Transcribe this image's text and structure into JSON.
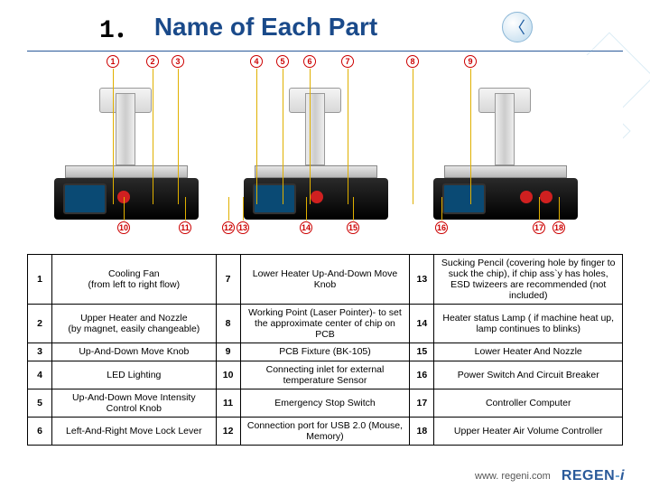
{
  "title": {
    "num": "1．",
    "text": "Name of Each Part"
  },
  "markers_top": [
    1,
    2,
    3,
    4,
    5,
    6,
    7,
    8,
    9
  ],
  "markers_bot": [
    10,
    11,
    12,
    13,
    14,
    15,
    16,
    17,
    18
  ],
  "rows": [
    {
      "a": "1",
      "at": "Cooling Fan\n(from left to right flow)",
      "b": "7",
      "bt": "Lower Heater Up-And-Down Move Knob",
      "c": "13",
      "ct": "Sucking Pencil (covering hole by finger to suck the chip), if chip ass`y has holes, ESD twizeers are recommended (not included)"
    },
    {
      "a": "2",
      "at": "Upper Heater and Nozzle\n(by magnet, easily changeable)",
      "b": "8",
      "bt": "Working Point (Laser Pointer)- to set the approximate center of chip on PCB",
      "c": "14",
      "ct": "Heater status Lamp ( if machine heat up, lamp continues to blinks)"
    },
    {
      "a": "3",
      "at": "Up-And-Down Move Knob",
      "b": "9",
      "bt": "PCB Fixture (BK-105)",
      "c": "15",
      "ct": "Lower Heater And Nozzle"
    },
    {
      "a": "4",
      "at": "LED Lighting",
      "b": "10",
      "bt": "Connecting inlet for external temperature Sensor",
      "c": "16",
      "ct": "Power Switch And Circuit Breaker"
    },
    {
      "a": "5",
      "at": "Up-And-Down Move Intensity Control Knob",
      "b": "11",
      "bt": "Emergency Stop Switch",
      "c": "17",
      "ct": "Controller Computer"
    },
    {
      "a": "6",
      "at": "Left-And-Right Move Lock Lever",
      "b": "12",
      "bt": "Connection port for USB 2.0 (Mouse, Memory)",
      "c": "18",
      "ct": "Upper Heater Air Volume Controller"
    }
  ],
  "footer": {
    "url": "www. regeni.com",
    "brand_a": "REGEN",
    "brand_b": "-",
    "brand_c": "i"
  },
  "marker_top_x": [
    88,
    132,
    160,
    247,
    276,
    306,
    348,
    420,
    484
  ],
  "marker_bot_x": [
    100,
    168,
    216,
    232,
    302,
    354,
    452,
    560,
    582
  ],
  "colors": {
    "title": "#1a4a8a",
    "marker": "#cc0000",
    "line": "#e0b000"
  }
}
